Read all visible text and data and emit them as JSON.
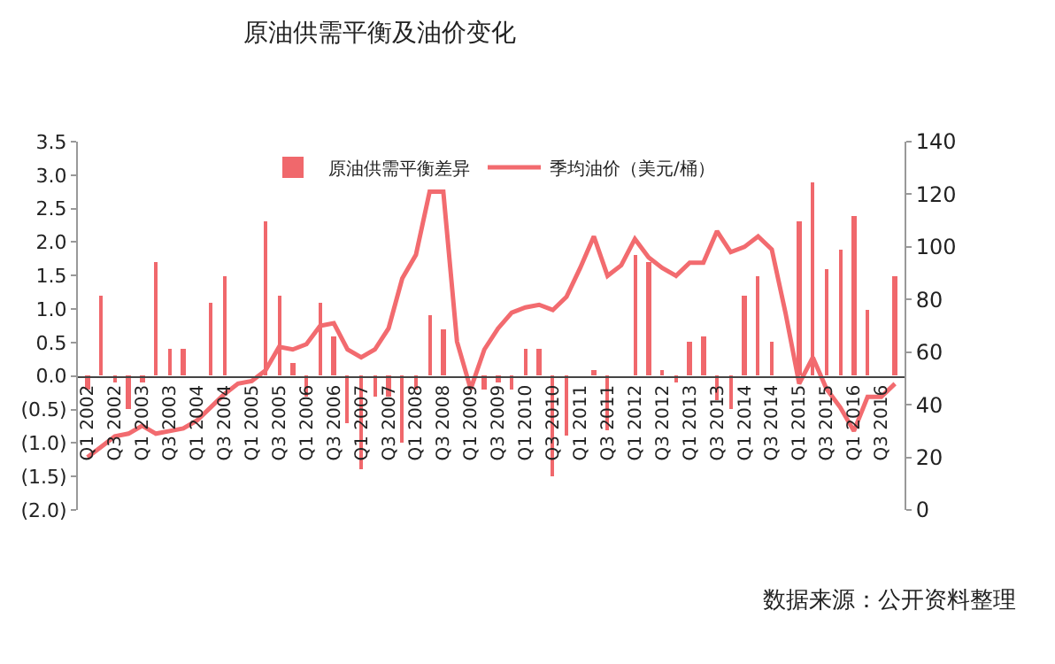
{
  "chart_data": {
    "type": "bar",
    "title": "原油供需平衡及油价变化",
    "categories": [
      "Q1 2002",
      null,
      "Q3 2002",
      null,
      "Q1 2003",
      null,
      "Q3 2003",
      null,
      "Q1 2004",
      null,
      "Q3 2004",
      null,
      "Q1 2005",
      null,
      "Q3 2005",
      null,
      "Q1 2006",
      null,
      "Q3 2006",
      null,
      "Q1 2007",
      null,
      "Q3 2007",
      null,
      "Q1 2008",
      null,
      "Q3 2008",
      null,
      "Q1 2009",
      null,
      "Q3 2009",
      null,
      "Q1 2010",
      null,
      "Q3 2010",
      null,
      "Q1 2011",
      null,
      "Q3 2011",
      null,
      "Q1 2012",
      null,
      "Q3 2012",
      null,
      "Q1 2013",
      null,
      "Q3 2013",
      null,
      "Q1 2014",
      null,
      "Q3 2014",
      null,
      "Q1 2015",
      null,
      "Q3 2015",
      null,
      "Q1 2016",
      null,
      "Q3 2016",
      null
    ],
    "series": [
      {
        "name": "原油供需平衡差异",
        "color": "#f0686c",
        "values": [
          -0.2,
          1.2,
          -0.1,
          -0.5,
          -0.1,
          1.7,
          0.4,
          0.4,
          0,
          1.1,
          1.5,
          0,
          0,
          2.3,
          1.2,
          0.2,
          -0.3,
          1.1,
          0.6,
          -0.7,
          -1.4,
          -0.3,
          -0.3,
          -1.0,
          -0.2,
          0.9,
          0.7,
          0,
          null,
          -0.2,
          -0.1,
          -0.2,
          0.4,
          0.4,
          -1.5,
          -0.9,
          0,
          0.1,
          -0.8,
          0,
          1.8,
          1.7,
          0.1,
          -0.1,
          0.5,
          0.6,
          -0.35,
          -0.5,
          1.2,
          1.5,
          0.5,
          0,
          2.3,
          2.9,
          1.6,
          1.9,
          2.4,
          1.0,
          0,
          1.5
        ]
      },
      {
        "name": "季均油价（美元/桶）",
        "type": "line",
        "axis": "y2",
        "color": "#f26b6f",
        "values": [
          20,
          24,
          28,
          29,
          32,
          29,
          30,
          31,
          34,
          39,
          44,
          48,
          49,
          53,
          62,
          61,
          63,
          70,
          71,
          61,
          58,
          61,
          69,
          88,
          97,
          121,
          121,
          64,
          46,
          61,
          69,
          75,
          77,
          78,
          76,
          81,
          92,
          104,
          89,
          93,
          103,
          96,
          92,
          89,
          94,
          94,
          106,
          98,
          100,
          104,
          99,
          75,
          48,
          58,
          46,
          39,
          30,
          43,
          43,
          48
        ]
      }
    ],
    "ylim": [
      -2.0,
      3.5
    ],
    "yticks": [
      {
        "value": -2.0,
        "label": "(2.0)"
      },
      {
        "value": -1.5,
        "label": "(1.5)"
      },
      {
        "value": -1.0,
        "label": "(1.0)"
      },
      {
        "value": -0.5,
        "label": "(0.5)"
      },
      {
        "value": 0,
        "label": "0.0"
      },
      {
        "value": 0.5,
        "label": "0.5"
      },
      {
        "value": 1.0,
        "label": "1.0"
      },
      {
        "value": 1.5,
        "label": "1.5"
      },
      {
        "value": 2.0,
        "label": "2.0"
      },
      {
        "value": 2.5,
        "label": "2.5"
      },
      {
        "value": 3.0,
        "label": "3.0"
      },
      {
        "value": 3.5,
        "label": "3.5"
      }
    ],
    "y2lim": [
      0,
      140
    ],
    "y2ticks": [
      0,
      20,
      40,
      60,
      80,
      100,
      120,
      140
    ],
    "legend": "top",
    "marker": "none",
    "line_style": "solid",
    "annotations": [
      "数据来源：公开资料整理"
    ]
  }
}
